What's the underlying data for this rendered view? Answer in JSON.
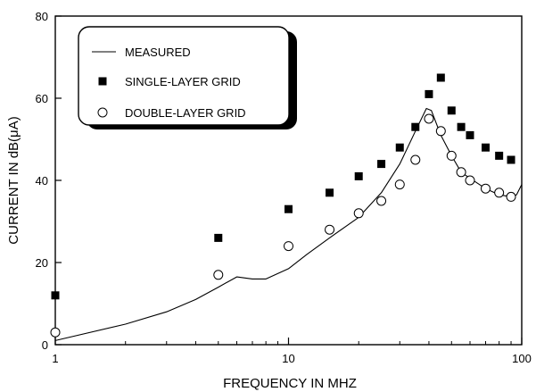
{
  "chart_data": {
    "type": "scatter",
    "xlabel": "FREQUENCY IN MHZ",
    "ylabel": "CURRENT IN dB(μA)",
    "xscale": "log",
    "xlim": [
      1,
      100
    ],
    "ylim": [
      0,
      80
    ],
    "grid": false,
    "legend_position": "top-left",
    "x_ticks": [
      {
        "value": 1,
        "label": "1"
      },
      {
        "value": 10,
        "label": "10"
      },
      {
        "value": 100,
        "label": "100"
      }
    ],
    "y_ticks": [
      {
        "value": 0,
        "label": "0"
      },
      {
        "value": 20,
        "label": "20"
      },
      {
        "value": 40,
        "label": "40"
      },
      {
        "value": 60,
        "label": "60"
      },
      {
        "value": 80,
        "label": "80"
      }
    ],
    "series": [
      {
        "name": "MEASURED",
        "style": "line",
        "color": "#000000",
        "points": [
          [
            1,
            1
          ],
          [
            2,
            5
          ],
          [
            3,
            8
          ],
          [
            4,
            11
          ],
          [
            5,
            14
          ],
          [
            6,
            16.5
          ],
          [
            7,
            16
          ],
          [
            8,
            16
          ],
          [
            10,
            18.5
          ],
          [
            12,
            22
          ],
          [
            15,
            26
          ],
          [
            20,
            31
          ],
          [
            25,
            37
          ],
          [
            30,
            44
          ],
          [
            35,
            52
          ],
          [
            39,
            57.5
          ],
          [
            41,
            57
          ],
          [
            45,
            51
          ],
          [
            50,
            46
          ],
          [
            55,
            42
          ],
          [
            60,
            40.5
          ],
          [
            70,
            38
          ],
          [
            80,
            36.5
          ],
          [
            90,
            36
          ],
          [
            95,
            36.5
          ],
          [
            100,
            39
          ]
        ]
      },
      {
        "name": "SINGLE-LAYER GRID",
        "style": "filled-square",
        "color": "#000000",
        "points": [
          [
            1,
            12
          ],
          [
            5,
            26
          ],
          [
            10,
            33
          ],
          [
            15,
            37
          ],
          [
            20,
            41
          ],
          [
            25,
            44
          ],
          [
            30,
            48
          ],
          [
            35,
            53
          ],
          [
            40,
            61
          ],
          [
            45,
            65
          ],
          [
            50,
            57
          ],
          [
            55,
            53
          ],
          [
            60,
            51
          ],
          [
            70,
            48
          ],
          [
            80,
            46
          ],
          [
            90,
            45
          ]
        ]
      },
      {
        "name": "DOUBLE-LAYER GRID",
        "style": "open-circle",
        "color": "#000000",
        "points": [
          [
            1,
            3
          ],
          [
            5,
            17
          ],
          [
            10,
            24
          ],
          [
            15,
            28
          ],
          [
            20,
            32
          ],
          [
            25,
            35
          ],
          [
            30,
            39
          ],
          [
            35,
            45
          ],
          [
            40,
            55
          ],
          [
            45,
            52
          ],
          [
            50,
            46
          ],
          [
            55,
            42
          ],
          [
            60,
            40
          ],
          [
            70,
            38
          ],
          [
            80,
            37
          ],
          [
            90,
            36
          ]
        ]
      }
    ]
  }
}
